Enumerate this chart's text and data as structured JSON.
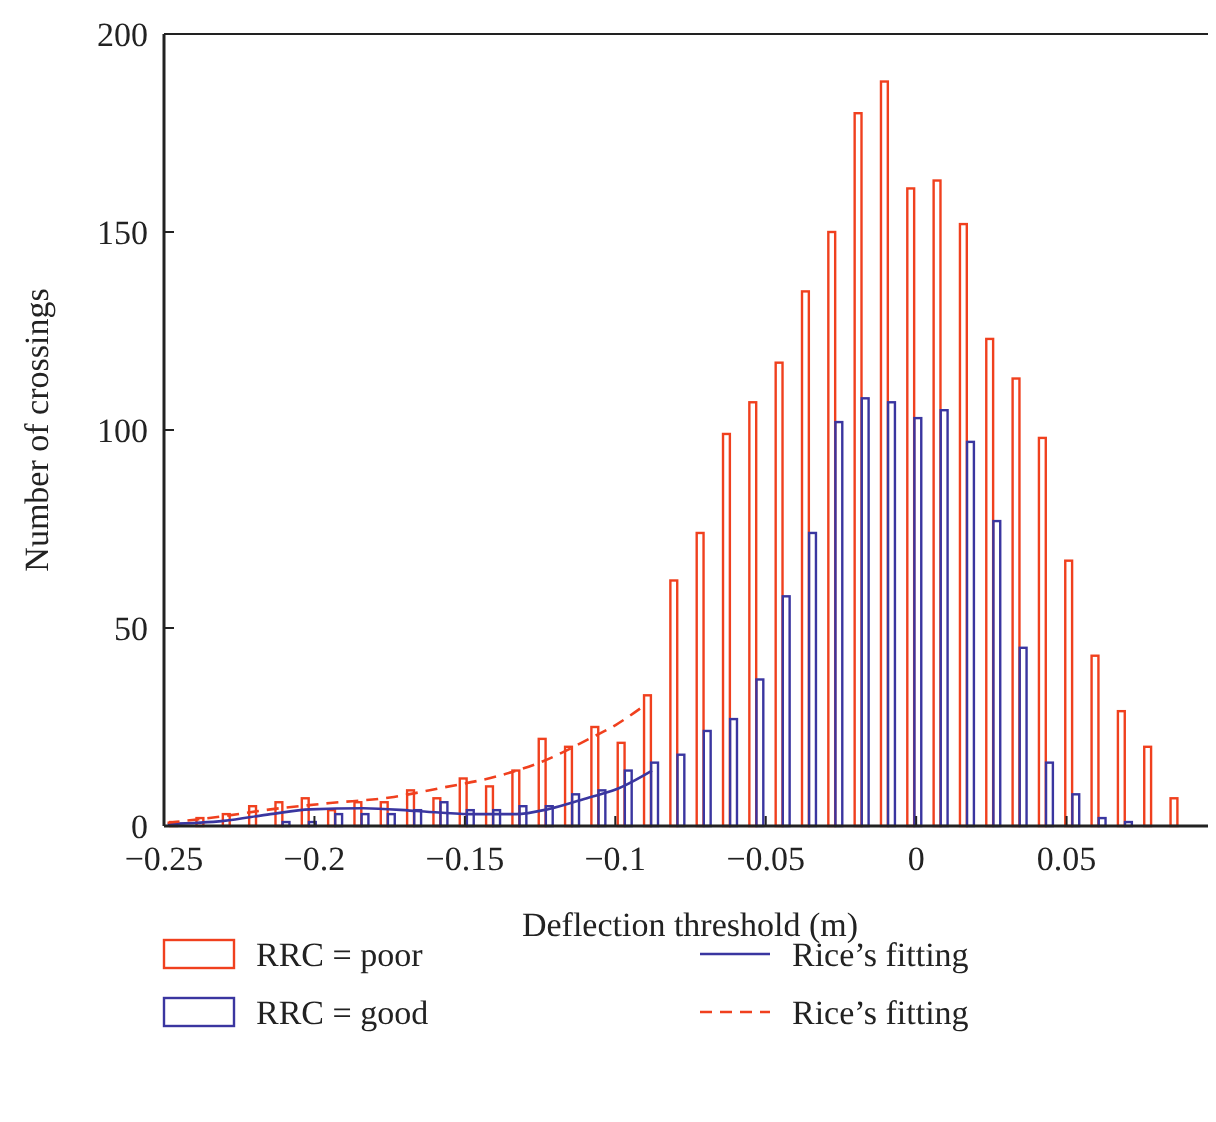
{
  "chart_data": {
    "type": "bar",
    "xlabel": "Deflection threshold (m)",
    "ylabel": "Number of crossings",
    "x": [
      -0.245625,
      -0.236875,
      -0.228125,
      -0.219375,
      -0.210625,
      -0.201875,
      -0.193125,
      -0.184375,
      -0.175625,
      -0.166875,
      -0.158125,
      -0.149375,
      -0.140625,
      -0.131875,
      -0.123125,
      -0.114375,
      -0.105625,
      -0.096875,
      -0.088125,
      -0.079375,
      -0.070625,
      -0.061875,
      -0.053125,
      -0.044375,
      -0.035625,
      -0.026875,
      -0.018125,
      -0.009375,
      -0.000625,
      0.008125,
      0.016875,
      0.025625,
      0.034375,
      0.043125,
      0.051875,
      0.060625,
      0.069375,
      0.078125,
      0.086875
    ],
    "series": [
      {
        "name": "RRC = poor",
        "color": "#f0401e",
        "values": [
          1,
          2,
          3,
          5,
          6,
          7,
          4,
          6,
          6,
          9,
          7,
          12,
          10,
          14,
          22,
          20,
          25,
          21,
          33,
          62,
          74,
          99,
          107,
          117,
          135,
          150,
          180,
          188,
          161,
          163,
          152,
          123,
          113,
          98,
          67,
          43,
          29,
          20,
          7
        ]
      },
      {
        "name": "RRC = good",
        "color": "#3a36a0",
        "values": [
          0,
          0,
          0,
          0,
          1,
          1,
          3,
          3,
          3,
          4,
          6,
          4,
          4,
          5,
          5,
          8,
          9,
          14,
          16,
          18,
          24,
          27,
          37,
          58,
          74,
          102,
          108,
          107,
          103,
          105,
          97,
          77,
          45,
          16,
          8,
          2,
          1,
          0,
          0
        ]
      },
      {
        "name": "Rice’s fitting",
        "type": "line",
        "color": "#3a36a0",
        "line_style": "solid",
        "x": [
          -0.2488,
          -0.2301,
          -0.2146,
          -0.2014,
          -0.1838,
          -0.1661,
          -0.1484,
          -0.133,
          -0.122,
          -0.1087,
          -0.0999,
          -0.0878
        ],
        "values": [
          0.5,
          1.3,
          3,
          4.2,
          4.5,
          3.8,
          3,
          3,
          4.3,
          7.2,
          9.2,
          14
        ]
      },
      {
        "name": "Rice’s fitting",
        "type": "line",
        "color": "#f0401e",
        "line_style": "dashed",
        "x": [
          -0.2488,
          -0.2301,
          -0.2146,
          -0.1948,
          -0.1749,
          -0.1573,
          -0.1396,
          -0.1242,
          -0.1087,
          -0.0999,
          -0.0911
        ],
        "values": [
          0.8,
          2.5,
          4.2,
          5.8,
          7.2,
          9.7,
          12.5,
          16.3,
          22,
          25.5,
          30
        ]
      }
    ],
    "xlim": [
      -0.25,
      0.097
    ],
    "xticks": [
      {
        "value": -0.25,
        "label": "−0.25"
      },
      {
        "value": -0.2,
        "label": "−0.2"
      },
      {
        "value": -0.15,
        "label": "−0.15"
      },
      {
        "value": -0.1,
        "label": "−0.1"
      },
      {
        "value": -0.05,
        "label": "−0.05"
      },
      0,
      0.05
    ],
    "ylim": [
      0,
      200
    ],
    "yticks": [
      0,
      50,
      100,
      150,
      200
    ],
    "legend": "bottom",
    "grid": false,
    "marker": "none"
  }
}
